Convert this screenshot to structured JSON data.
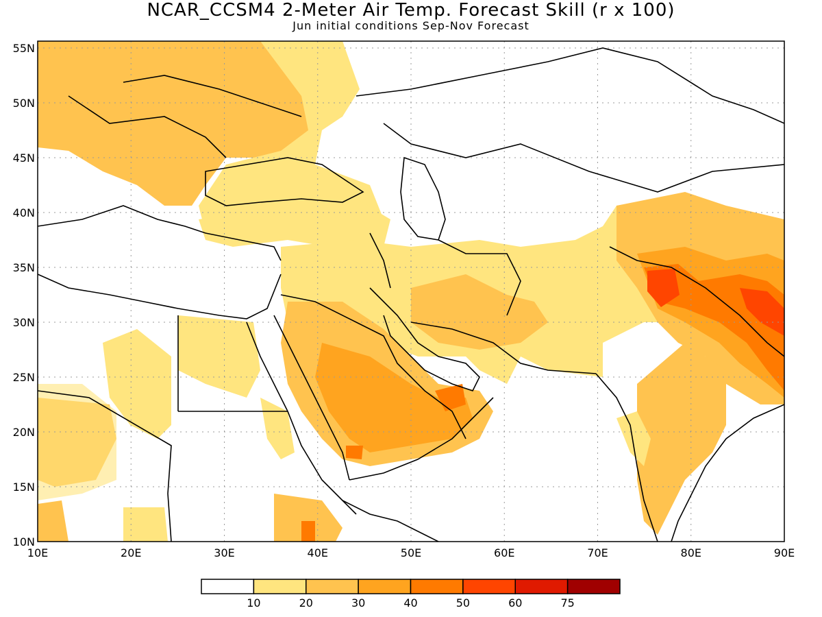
{
  "title": "NCAR_CCSM4 2-Meter Air Temp. Forecast Skill (r x 100)",
  "subtitle": "Jun initial conditions  Sep-Nov Forecast",
  "lon_ticks": [
    "10E",
    "20E",
    "30E",
    "40E",
    "50E",
    "60E",
    "70E",
    "80E",
    "90E"
  ],
  "lat_ticks": [
    "55N",
    "50N",
    "45N",
    "40N",
    "35N",
    "30N",
    "25N",
    "20N",
    "15N",
    "10N"
  ],
  "colorbar": {
    "colors": [
      "#ffffff",
      "#ffe57f",
      "#ffc34f",
      "#ffa41f",
      "#ff7a00",
      "#ff4500",
      "#e01a00",
      "#a00000"
    ],
    "labels": [
      "10",
      "20",
      "30",
      "40",
      "50",
      "60",
      "75"
    ]
  },
  "colors": {
    "land_outline": "#000000",
    "grid": "#9a9a9a"
  }
}
